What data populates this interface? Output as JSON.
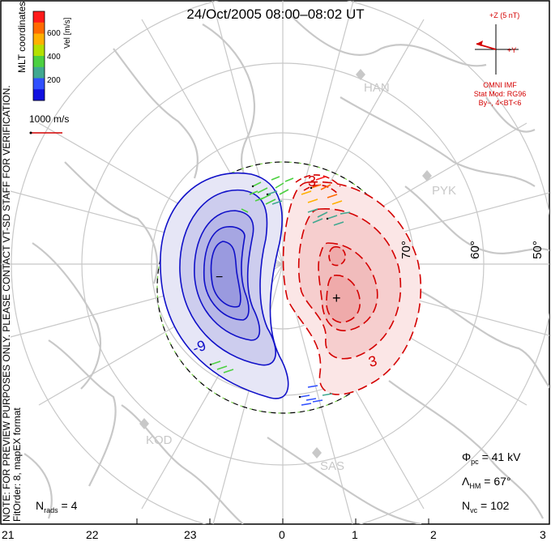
{
  "title": "24/Oct/2005 08:00–08:02 UT",
  "notes": {
    "preview": "NOTE: FOR PREVIEW PURPOSES ONLY. PLEASE CONTACT VT-SD STAFF FOR VERIFICATION.",
    "fit": "FitOrder: 8, mapEX format",
    "coords": "MLT coordinates"
  },
  "colorbar": {
    "label": "Vel [m/s]",
    "ticks": [
      "600",
      "400",
      "200"
    ],
    "colors": [
      "#ff1a1a",
      "#ff6a00",
      "#ffb000",
      "#b4e000",
      "#4cd040",
      "#40a890",
      "#3050ff",
      "#1010e0"
    ]
  },
  "reference_vector": {
    "label": "1000 m/s",
    "color": "#d40000"
  },
  "mlt_ticks": [
    "21",
    "22",
    "23",
    "0",
    "1",
    "2",
    "3"
  ],
  "latitude_labels": [
    "70°",
    "60°",
    "50°"
  ],
  "sites": [
    "HAN",
    "PYK",
    "KOD",
    "SAS"
  ],
  "contours": {
    "negative_label": "-9",
    "positive_label": "3",
    "min_marker": "−",
    "max_marker": "+",
    "negative_fill": "#9a9adf",
    "positive_fill": "#efaaaa",
    "negative_line": "#1010c8",
    "positive_line": "#d40000"
  },
  "imf": {
    "z_label": "+Z (5 nT)",
    "y_label": "+Y",
    "lines": [
      "OMNI IMF",
      "Stat Mod: RG96",
      "By−, 4<BT<6"
    ]
  },
  "stats": {
    "phi_symbol": "Φ",
    "phi_sub": "pc",
    "phi_value": " = 41 kV",
    "lambda_symbol": "Λ",
    "lambda_sub": "HM",
    "lambda_value": " = 67°",
    "nvc_symbol": "N",
    "nvc_sub": "vc",
    "nvc_value": " = 102",
    "nrads_symbol": "N",
    "nrads_sub": "rads",
    "nrads_value": " = 4"
  }
}
